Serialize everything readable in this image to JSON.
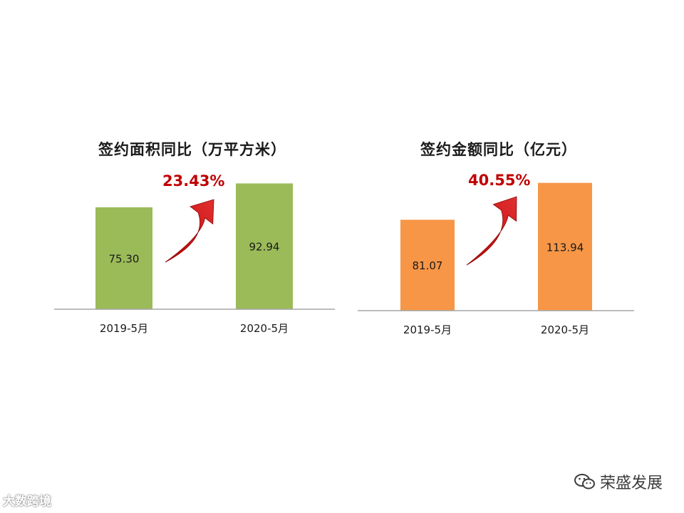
{
  "chart_data": [
    {
      "type": "bar",
      "title": "签约面积同比（万平方米）",
      "categories": [
        "2019-5月",
        "2020-5月"
      ],
      "values": [
        75.3,
        92.94
      ],
      "value_labels": [
        "75.30",
        "92.94"
      ],
      "ylim": [
        0,
        100
      ],
      "annotation": "23.43%",
      "bar_color": "#9bbb59",
      "annotation_color": "#c00000",
      "grid": false,
      "legend": "none"
    },
    {
      "type": "bar",
      "title": "签约金额同比（亿元）",
      "categories": [
        "2019-5月",
        "2020-5月"
      ],
      "values": [
        81.07,
        113.94
      ],
      "value_labels": [
        "81.07",
        "113.94"
      ],
      "ylim": [
        0,
        122
      ],
      "annotation": "40.55%",
      "bar_color": "#f79646",
      "annotation_color": "#c00000",
      "grid": false,
      "legend": "none"
    }
  ],
  "watermarks": {
    "left": "大数跨境",
    "right": "荣盛发展"
  }
}
